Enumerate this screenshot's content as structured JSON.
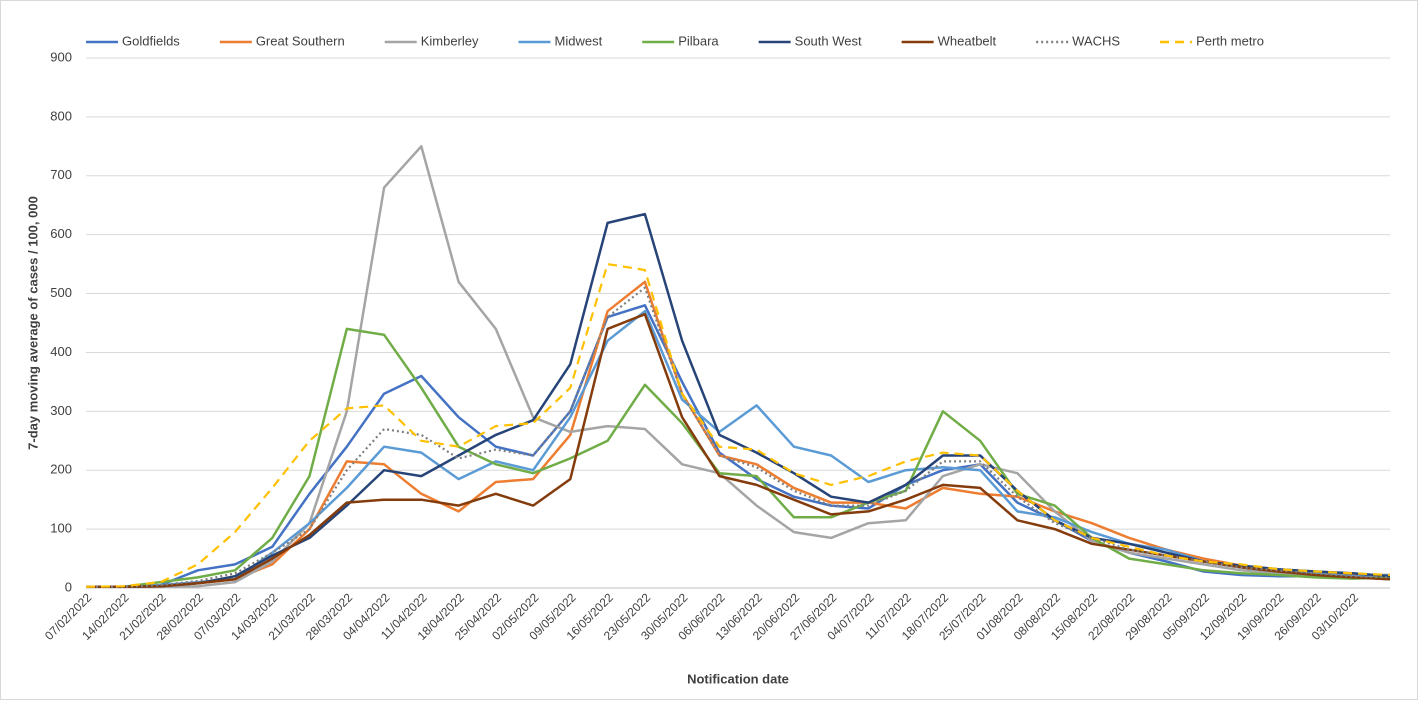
{
  "chart_data": {
    "type": "line",
    "x_label": "Notification date",
    "y_label": "7-day moving average of cases / 100, 000",
    "categories": [
      "07/02/2022",
      "14/02/2022",
      "21/02/2022",
      "28/02/2022",
      "07/03/2022",
      "14/03/2022",
      "21/03/2022",
      "28/03/2022",
      "04/04/2022",
      "11/04/2022",
      "18/04/2022",
      "25/04/2022",
      "02/05/2022",
      "09/05/2022",
      "16/05/2022",
      "23/05/2022",
      "30/05/2022",
      "06/06/2022",
      "13/06/2022",
      "20/06/2022",
      "27/06/2022",
      "04/07/2022",
      "11/07/2022",
      "18/07/2022",
      "25/07/2022",
      "01/08/2022",
      "08/08/2022",
      "15/08/2022",
      "22/08/2022",
      "29/08/2022",
      "05/09/2022",
      "12/09/2022",
      "19/09/2022",
      "26/09/2022",
      "03/10/2022",
      null
    ],
    "ylim": [
      0,
      900
    ],
    "yticks": [
      0,
      100,
      200,
      300,
      400,
      500,
      600,
      700,
      800,
      900
    ],
    "grid": true,
    "series": [
      {
        "name": "Goldfields",
        "color": "#4472c4",
        "style": "solid",
        "values": [
          2,
          2,
          5,
          30,
          40,
          70,
          160,
          240,
          330,
          360,
          290,
          240,
          225,
          300,
          460,
          480,
          350,
          230,
          185,
          155,
          140,
          135,
          175,
          200,
          210,
          145,
          115,
          80,
          60,
          45,
          28,
          22,
          20,
          20,
          18,
          20
        ]
      },
      {
        "name": "Great Southern",
        "color": "#ed7d31",
        "style": "solid",
        "values": [
          2,
          2,
          3,
          8,
          15,
          40,
          100,
          215,
          210,
          160,
          130,
          180,
          185,
          260,
          470,
          520,
          330,
          225,
          210,
          170,
          145,
          145,
          135,
          170,
          160,
          155,
          130,
          110,
          85,
          65,
          50,
          38,
          30,
          25,
          22,
          22
        ]
      },
      {
        "name": "Kimberley",
        "color": "#a5a5a5",
        "style": "solid",
        "values": [
          2,
          2,
          2,
          3,
          10,
          45,
          110,
          300,
          680,
          750,
          520,
          440,
          290,
          265,
          275,
          270,
          210,
          195,
          140,
          95,
          85,
          110,
          115,
          190,
          210,
          195,
          130,
          80,
          60,
          50,
          40,
          30,
          25,
          20,
          18,
          15
        ]
      },
      {
        "name": "Midwest",
        "color": "#5b9bd5",
        "style": "solid",
        "values": [
          2,
          2,
          5,
          10,
          15,
          60,
          110,
          170,
          240,
          230,
          185,
          215,
          200,
          290,
          420,
          470,
          320,
          265,
          310,
          240,
          225,
          180,
          200,
          205,
          200,
          130,
          120,
          95,
          75,
          65,
          45,
          35,
          28,
          25,
          20,
          22
        ]
      },
      {
        "name": "Pilbara",
        "color": "#70ad47",
        "style": "solid",
        "values": [
          2,
          2,
          10,
          18,
          30,
          85,
          190,
          440,
          430,
          340,
          240,
          210,
          195,
          220,
          250,
          345,
          280,
          195,
          190,
          120,
          120,
          145,
          165,
          300,
          250,
          160,
          140,
          85,
          50,
          40,
          30,
          25,
          22,
          18,
          16,
          18
        ]
      },
      {
        "name": "South West",
        "color": "#264478",
        "style": "solid",
        "values": [
          2,
          2,
          3,
          8,
          20,
          55,
          85,
          140,
          200,
          190,
          225,
          260,
          285,
          380,
          620,
          635,
          420,
          260,
          230,
          195,
          155,
          145,
          175,
          225,
          225,
          165,
          115,
          85,
          75,
          60,
          45,
          38,
          32,
          28,
          25,
          20
        ]
      },
      {
        "name": "Wheatbelt",
        "color": "#843c0c",
        "style": "solid",
        "values": [
          2,
          2,
          3,
          8,
          15,
          50,
          90,
          145,
          150,
          150,
          140,
          160,
          140,
          185,
          440,
          465,
          290,
          190,
          175,
          150,
          125,
          130,
          150,
          175,
          170,
          115,
          100,
          75,
          65,
          55,
          45,
          35,
          28,
          22,
          18,
          15
        ]
      },
      {
        "name": "WACHS",
        "color": "#7f7f7f",
        "style": "dotted",
        "values": [
          2,
          2,
          5,
          12,
          25,
          60,
          100,
          200,
          270,
          260,
          220,
          235,
          225,
          300,
          460,
          510,
          330,
          225,
          205,
          165,
          140,
          140,
          165,
          215,
          215,
          155,
          110,
          85,
          65,
          55,
          45,
          35,
          30,
          25,
          20,
          18
        ]
      },
      {
        "name": "Perth metro",
        "color": "#ffc000",
        "style": "dashed",
        "values": [
          2,
          3,
          10,
          40,
          95,
          170,
          250,
          305,
          310,
          250,
          240,
          275,
          280,
          340,
          550,
          540,
          330,
          240,
          235,
          195,
          175,
          190,
          215,
          230,
          225,
          165,
          115,
          85,
          70,
          55,
          45,
          40,
          32,
          28,
          25,
          22
        ]
      }
    ]
  }
}
